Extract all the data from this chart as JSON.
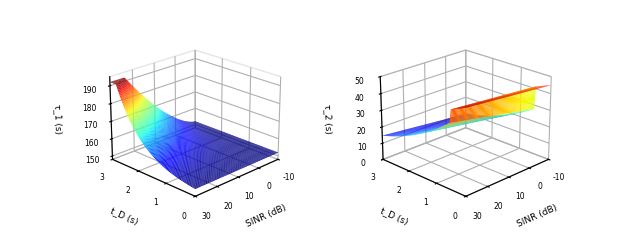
{
  "sinr_min": -10,
  "sinr_max": 30,
  "td_min": 0,
  "td_max": 3,
  "tau1_base": 152,
  "tau1_max": 192,
  "tau2_max": 50,
  "xlabel": "SINR (dB)",
  "ylabel": "t_D (s)",
  "zlabel1": "τ_1 (s)",
  "zlabel2": "τ_2 (s)",
  "sinr_ticks": [
    -10,
    0,
    10,
    20,
    30
  ],
  "td_ticks": [
    0,
    1,
    2,
    3
  ],
  "tau1_ticks": [
    150,
    160,
    170,
    180,
    190
  ],
  "tau2_ticks": [
    0,
    10,
    20,
    30,
    40,
    50
  ],
  "elev1": 22,
  "azim1": -135,
  "elev2": 22,
  "azim2": -135,
  "background_color": "#ffffff"
}
